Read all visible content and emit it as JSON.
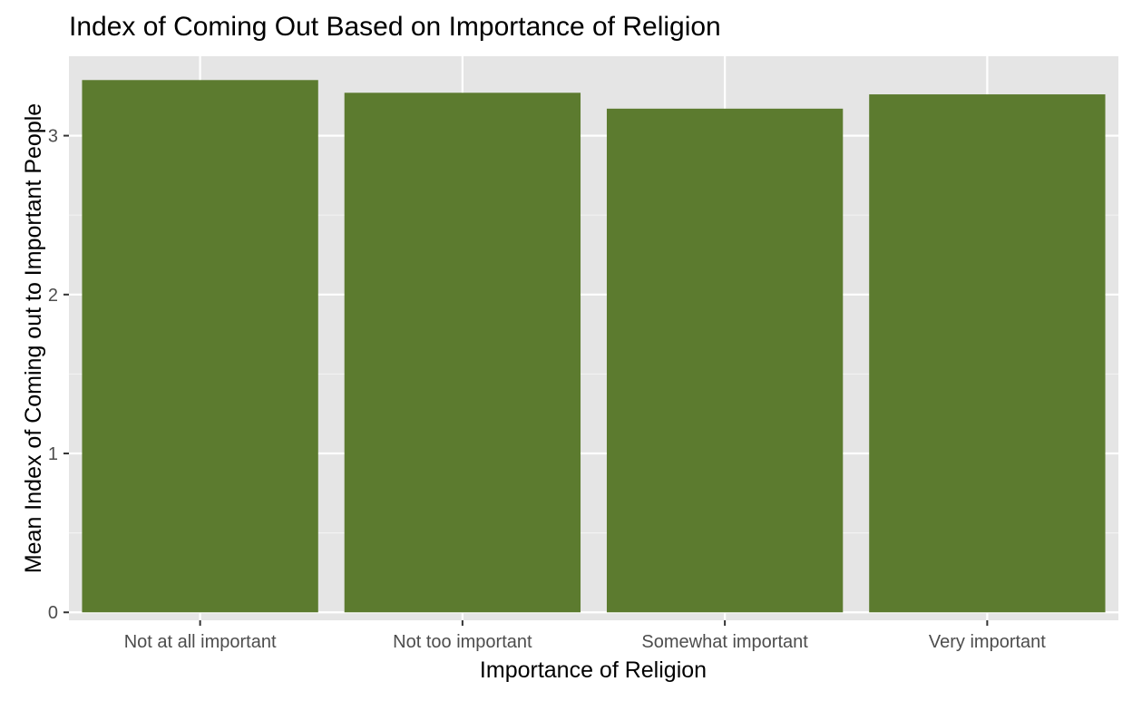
{
  "chart_data": {
    "type": "bar",
    "title": "Index of Coming Out Based on Importance of Religion",
    "xlabel": "Importance of Religion",
    "ylabel": "Mean Index of Coming out to Important People",
    "categories": [
      "Not at all important",
      "Not too important",
      "Somewhat important",
      "Very important"
    ],
    "values": [
      3.35,
      3.27,
      3.17,
      3.26
    ],
    "ylim": [
      -0.05,
      3.5
    ],
    "yticks": [
      0,
      1,
      2,
      3
    ],
    "ytick_labels": [
      "0",
      "1",
      "2",
      "3"
    ],
    "grid": true,
    "legend": "none"
  },
  "colors": {
    "bar": "#5c7b2f",
    "panel": "#e5e5e5",
    "grid_major": "#ffffff",
    "grid_minor": "#f2f2f2",
    "axis_text": "#4d4d4d",
    "tick_mark": "#333333",
    "title": "#000000"
  }
}
